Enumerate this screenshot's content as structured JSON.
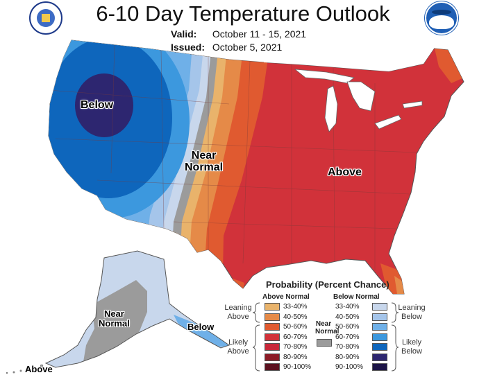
{
  "header": {
    "title": "6-10 Day Temperature Outlook",
    "valid_label": "Valid:",
    "valid_value": "October 11 - 15, 2021",
    "issued_label": "Issued:",
    "issued_value": "October 5, 2021"
  },
  "map_labels": {
    "below": "Below",
    "near_normal_1": "Near",
    "near_normal_2": "Normal",
    "above": "Above",
    "ak_near_1": "Near",
    "ak_near_2": "Normal",
    "ak_below": "Below",
    "ak_above": "Above"
  },
  "legend": {
    "title": "Probability (Percent Chance)",
    "above_header": "Above Normal",
    "below_header": "Below Normal",
    "near_header_1": "Near",
    "near_header_2": "Normal",
    "leaning_above_1": "Leaning",
    "leaning_above_2": "Above",
    "likely_above_1": "Likely",
    "likely_above_2": "Above",
    "leaning_below_1": "Leaning",
    "leaning_below_2": "Below",
    "likely_below_1": "Likely",
    "likely_below_2": "Below",
    "above_items": [
      "33-40%",
      "40-50%",
      "50-60%",
      "60-70%",
      "70-80%",
      "80-90%",
      "90-100%"
    ],
    "below_items": [
      "33-40%",
      "40-50%",
      "50-60%",
      "60-70%",
      "70-80%",
      "80-90%",
      "90-100%"
    ],
    "above_colors": [
      "#e9b36b",
      "#e58a48",
      "#e05a30",
      "#d1323a",
      "#c8283a",
      "#8c1b26",
      "#5c1220"
    ],
    "below_colors": [
      "#c8d7ec",
      "#a5c5ea",
      "#6fb0e8",
      "#3c98de",
      "#0e66bc",
      "#2d2670",
      "#1c1447"
    ],
    "near_color": "#9b9b9b"
  },
  "logos": {
    "left": "doc-seal-icon",
    "right": "noaa-logo-icon"
  }
}
